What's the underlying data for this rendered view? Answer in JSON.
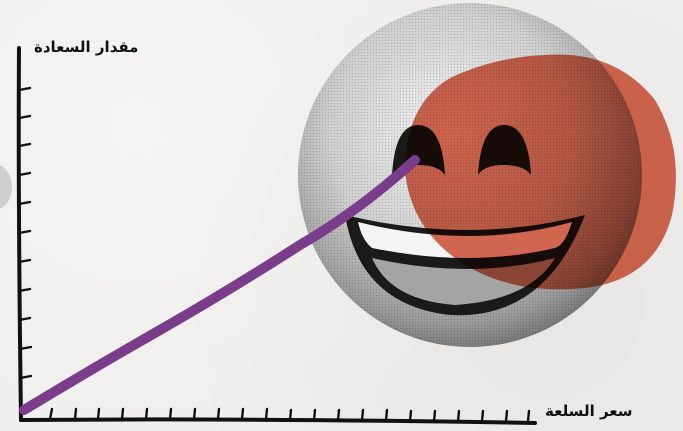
{
  "labels": {
    "y_axis": "مقدار السعادة",
    "x_axis": "سعر السلعة"
  },
  "icons": {
    "emoji": "grinning-face-icon",
    "blob": "red-circle-shape"
  },
  "colors": {
    "line": "#7a3d8a",
    "blob": "#d2492c",
    "axis": "#111111",
    "background": "#efeeec"
  }
}
